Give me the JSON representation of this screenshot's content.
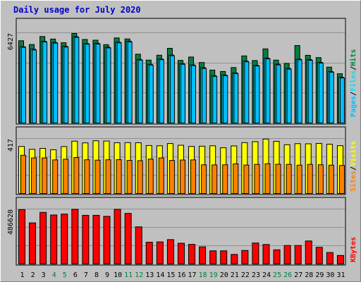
{
  "title": "Daily usage for July 2020",
  "colors": {
    "background": "#c0c0c0",
    "title": "#0000cc",
    "hits": "#008040",
    "files": "#00e0ff",
    "pages": "#00c0ff",
    "visits": "#ffff00",
    "sites": "#ff8000",
    "kbytes": "#ff0000",
    "weekend_label": "#008040"
  },
  "chart_data": [
    {
      "type": "bar",
      "panel": "hits-files-pages",
      "x": [
        "1",
        "2",
        "3",
        "4",
        "5",
        "6",
        "7",
        "8",
        "9",
        "10",
        "11",
        "12",
        "13",
        "14",
        "15",
        "16",
        "17",
        "18",
        "19",
        "20",
        "21",
        "22",
        "23",
        "24",
        "25",
        "26",
        "27",
        "28",
        "29",
        "30",
        "31"
      ],
      "ymax_label": "6427",
      "ylim": [
        0,
        6427
      ],
      "legend": [
        "Pages",
        "/",
        "Files",
        "/",
        "Hits"
      ],
      "series": [
        {
          "name": "Hits",
          "values": [
            5860,
            5590,
            6160,
            5980,
            5720,
            6380,
            5950,
            5900,
            5580,
            6060,
            5990,
            4900,
            4480,
            4830,
            5320,
            4460,
            4700,
            4310,
            3770,
            3670,
            3950,
            4780,
            4450,
            5280,
            4480,
            4240,
            5520,
            4820,
            4660,
            3980,
            3510
          ]
        },
        {
          "name": "Files",
          "values": [
            5440,
            5260,
            5820,
            5740,
            5460,
            6150,
            5660,
            5680,
            5400,
            5760,
            5830,
            4530,
            4180,
            4560,
            4840,
            4230,
            4140,
            3940,
            3370,
            3420,
            3570,
            4410,
            4110,
            4620,
            4190,
            3890,
            4550,
            4520,
            4320,
            3670,
            3260
          ]
        },
        {
          "name": "Pages",
          "values": [
            5390,
            5200,
            5770,
            5690,
            5410,
            6100,
            5610,
            5630,
            5350,
            5710,
            5780,
            4480,
            4130,
            4510,
            4790,
            4180,
            4090,
            3890,
            3320,
            3370,
            3520,
            4360,
            4060,
            4570,
            4140,
            3840,
            4500,
            4470,
            4270,
            3620,
            3210
          ]
        }
      ]
    },
    {
      "type": "bar",
      "panel": "sites-visits",
      "x": [
        "1",
        "2",
        "3",
        "4",
        "5",
        "6",
        "7",
        "8",
        "9",
        "10",
        "11",
        "12",
        "13",
        "14",
        "15",
        "16",
        "17",
        "18",
        "19",
        "20",
        "21",
        "22",
        "23",
        "24",
        "25",
        "26",
        "27",
        "28",
        "29",
        "30",
        "31"
      ],
      "ymax_label": "417",
      "ylim": [
        0,
        417
      ],
      "legend": [
        "Sites",
        "/",
        "Visits"
      ],
      "series": [
        {
          "name": "Visits",
          "values": [
            357,
            335,
            342,
            332,
            356,
            397,
            384,
            400,
            398,
            385,
            386,
            385,
            364,
            362,
            379,
            366,
            357,
            359,
            362,
            347,
            361,
            386,
            393,
            413,
            396,
            370,
            378,
            377,
            380,
            374,
            363
          ]
        },
        {
          "name": "Sites",
          "values": [
            290,
            270,
            270,
            255,
            260,
            273,
            256,
            253,
            256,
            257,
            251,
            249,
            261,
            270,
            251,
            254,
            255,
            218,
            217,
            218,
            225,
            216,
            221,
            226,
            222,
            221,
            215,
            221,
            218,
            215,
            213
          ]
        }
      ]
    },
    {
      "type": "bar",
      "panel": "kbytes",
      "x": [
        "1",
        "2",
        "3",
        "4",
        "5",
        "6",
        "7",
        "8",
        "9",
        "10",
        "11",
        "12",
        "13",
        "14",
        "15",
        "16",
        "17",
        "18",
        "19",
        "20",
        "21",
        "22",
        "23",
        "24",
        "25",
        "26",
        "27",
        "28",
        "29",
        "30",
        "31"
      ],
      "ymax_label": "486620",
      "ylim": [
        0,
        486620
      ],
      "legend": [
        "KBytes"
      ],
      "series": [
        {
          "name": "KBytes",
          "values": [
            481000,
            364000,
            457000,
            434000,
            442000,
            484000,
            431000,
            431000,
            422000,
            484000,
            448000,
            329000,
            193000,
            196000,
            216000,
            184000,
            174000,
            152000,
            117000,
            117000,
            85000,
            120000,
            186000,
            173000,
            126000,
            164000,
            164000,
            204000,
            148000,
            102000,
            76000
          ]
        }
      ]
    }
  ],
  "weekend_days": [
    "4",
    "5",
    "11",
    "12",
    "18",
    "19",
    "25",
    "26"
  ]
}
